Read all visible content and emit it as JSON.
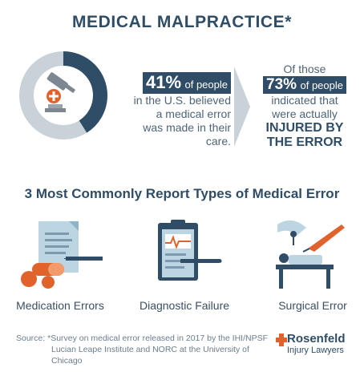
{
  "title": "MEDICAL MALPRACTICE*",
  "stat1": {
    "percent": "41%",
    "lead": "of people",
    "lines": [
      "in the U.S. believed",
      "a medical error",
      "was made  in their care."
    ],
    "value": 41
  },
  "stat2": {
    "intro": "Of those",
    "percent": "73%",
    "lead": "of people",
    "lines": [
      "indicated that",
      "were actually"
    ],
    "emphasis": [
      "INJURED BY",
      "THE ERROR"
    ]
  },
  "section_title": "3 Most Commonly Report Types of Medical Error",
  "types": [
    {
      "label": "Medication Errors",
      "icon": "medication-icon"
    },
    {
      "label": "Diagnostic Failure",
      "icon": "clipboard-ekg-icon"
    },
    {
      "label": "Surgical Error",
      "icon": "surgery-icon"
    }
  ],
  "source": {
    "line1": "Source: *Survey on medical error released in 2017 by the IHI/NPSF",
    "line2": "Lucian Leape Institute and NORC at the University of Chicago"
  },
  "logo": {
    "name": "Rosenfeld",
    "sub": "Injury Lawyers"
  },
  "colors": {
    "navy": "#2f4d66",
    "light_gray": "#c9d2d8",
    "orange": "#e0632c",
    "light_blue": "#bcd5e3"
  }
}
